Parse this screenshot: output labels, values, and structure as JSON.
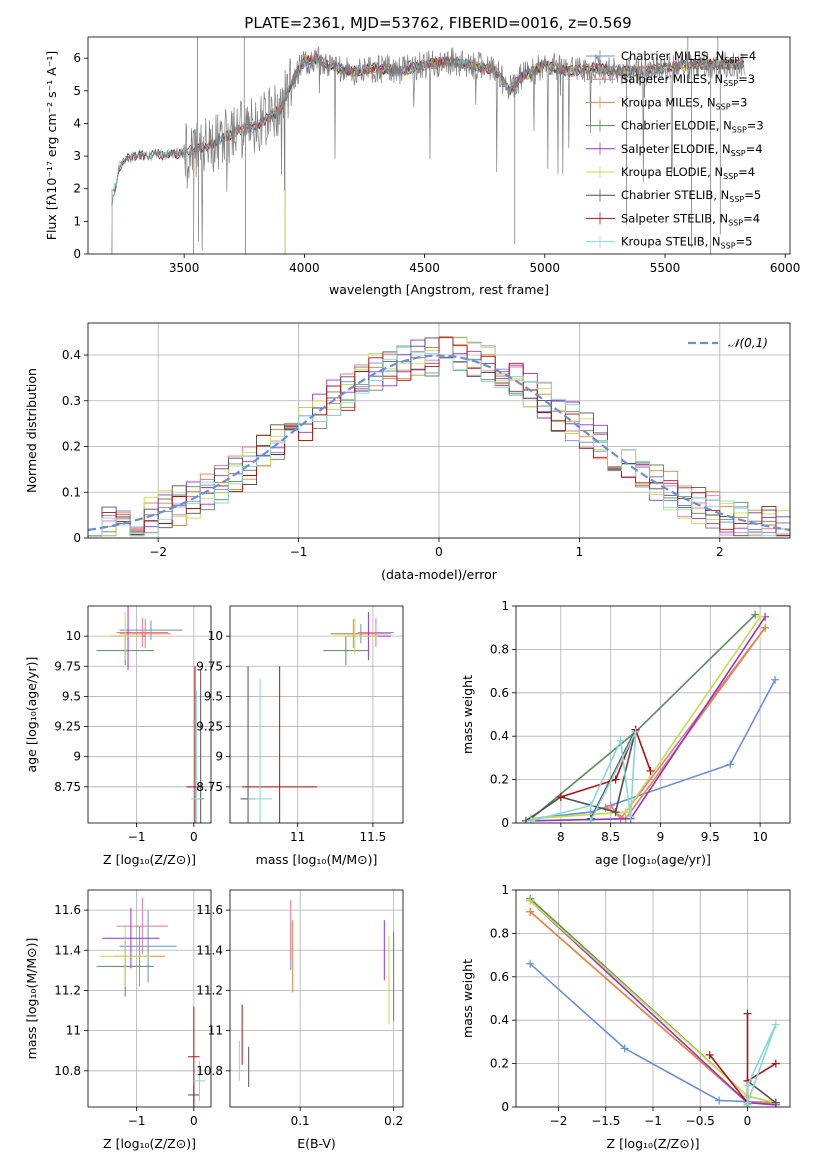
{
  "title": "PLATE=2361, MJD=53762, FIBERID=0016, z=0.569",
  "colors": {
    "chabrier_miles": "#6a8fd8",
    "salpeter_miles": "#e8749f",
    "kroupa_miles": "#e8863a",
    "chabrier_elodie": "#5a8a5a",
    "salpeter_elodie": "#9932cc",
    "kroupa_elodie": "#c8dc50",
    "chabrier_stelib": "#505050",
    "salpeter_stelib": "#b01010",
    "kroupa_stelib": "#88d8d8",
    "data_spectrum": "#7f7f7f",
    "normal_curve": "#6a8fd8"
  },
  "chart_data": [
    {
      "id": "spectrum",
      "type": "line",
      "xlabel": "wavelength [Angstrom, rest frame]",
      "ylabel": "Flux [fλ10⁻¹⁷ erg cm⁻² s⁻¹ A⁻¹]",
      "xlim": [
        3100,
        6020
      ],
      "ylim": [
        0,
        6.65
      ],
      "xticks": [
        3500,
        4000,
        4500,
        5000,
        5500,
        6000
      ],
      "yticks": [
        0,
        1,
        2,
        3,
        4,
        5,
        6
      ],
      "legend_position": "top-right",
      "legend": [
        {
          "label": "Chabrier MILES, N",
          "sub": "SSP",
          "suffix": "=4",
          "color_key": "chabrier_miles"
        },
        {
          "label": "Salpeter MILES, N",
          "sub": "SSP",
          "suffix": "=3",
          "color_key": "salpeter_miles"
        },
        {
          "label": "Kroupa MILES, N",
          "sub": "SSP",
          "suffix": "=3",
          "color_key": "kroupa_miles"
        },
        {
          "label": "Chabrier ELODIE, N",
          "sub": "SSP",
          "suffix": "=3",
          "color_key": "chabrier_elodie"
        },
        {
          "label": "Salpeter ELODIE, N",
          "sub": "SSP",
          "suffix": "=4",
          "color_key": "salpeter_elodie"
        },
        {
          "label": "Kroupa ELODIE, N",
          "sub": "SSP",
          "suffix": "=4",
          "color_key": "kroupa_elodie"
        },
        {
          "label": "Chabrier STELIB, N",
          "sub": "SSP",
          "suffix": "=5",
          "color_key": "chabrier_stelib"
        },
        {
          "label": "Salpeter STELIB, N",
          "sub": "SSP",
          "suffix": "=4",
          "color_key": "salpeter_stelib"
        },
        {
          "label": "Kroupa STELIB, N",
          "sub": "SSP",
          "suffix": "=5",
          "color_key": "kroupa_stelib"
        }
      ],
      "continuum": {
        "x": [
          3200,
          3230,
          3260,
          3300,
          3400,
          3500,
          3600,
          3700,
          3750,
          3800,
          3850,
          3900,
          3950,
          4000,
          4050,
          4100,
          4200,
          4300,
          4400,
          4500,
          4600,
          4700,
          4800,
          4850,
          4900,
          5000,
          5100,
          5200,
          5300,
          5400,
          5500,
          5600,
          5700,
          5800,
          5830
        ],
        "y": [
          1.6,
          2.7,
          2.9,
          3.0,
          3.05,
          3.1,
          3.3,
          3.7,
          3.85,
          3.9,
          4.2,
          4.4,
          5.3,
          5.9,
          6.0,
          5.8,
          5.6,
          5.7,
          5.6,
          5.8,
          5.9,
          5.8,
          5.6,
          5.0,
          5.4,
          5.8,
          5.6,
          5.7,
          5.6,
          5.6,
          5.7,
          5.8,
          5.8,
          5.8,
          5.9
        ]
      },
      "data_spikes_up": [
        {
          "x": 3555,
          "y": 6.65
        },
        {
          "x": 3750,
          "y": 6.65
        },
        {
          "x": 5535,
          "y": 6.1
        },
        {
          "x": 5595,
          "y": 6.65
        },
        {
          "x": 5720,
          "y": 6.65
        }
      ],
      "data_spikes_down": [
        {
          "x": 3560,
          "y": 0.4
        },
        {
          "x": 3755,
          "y": 0.0
        },
        {
          "x": 4875,
          "y": 0.3
        },
        {
          "x": 5340,
          "y": 0.9
        },
        {
          "x": 5610,
          "y": 0.2
        },
        {
          "x": 5690,
          "y": 0.0
        },
        {
          "x": 5730,
          "y": 0.6
        }
      ]
    },
    {
      "id": "residuals",
      "type": "step",
      "xlabel": "(data-model)/error",
      "ylabel": "Normed distribution",
      "xlim": [
        -2.5,
        2.5
      ],
      "ylim": [
        0,
        0.47
      ],
      "xticks": [
        -2,
        -1,
        0,
        1,
        2
      ],
      "yticks": [
        0,
        0.1,
        0.2,
        0.3,
        0.4
      ],
      "legend_position": "top-right",
      "legend": [
        {
          "label": "𝒩(0,1)",
          "color_key": "normal_curve"
        }
      ],
      "bin_width": 0.1,
      "bin_start": -2.5
    },
    {
      "id": "age_vs_Z",
      "type": "errorbar",
      "xlabel": "Z [log₁₀(Z/Z⊙)]",
      "ylabel": "age  [log₁₀(age/yr)]",
      "xlim": [
        -1.85,
        0.3
      ],
      "ylim": [
        8.45,
        10.25
      ],
      "xticks": [
        -1,
        0
      ],
      "yticks": [
        8.75,
        9.0,
        9.25,
        9.5,
        9.75,
        10.0
      ],
      "points": [
        {
          "k": "chabrier_miles",
          "x": -0.75,
          "xe": 0.55,
          "y": 10.05,
          "ye": 0.08
        },
        {
          "k": "salpeter_miles",
          "x": -0.9,
          "xe": 0.45,
          "y": 10.03,
          "ye": 0.12
        },
        {
          "k": "kroupa_miles",
          "x": -0.85,
          "xe": 0.45,
          "y": 10.02,
          "ye": 0.12
        },
        {
          "k": "chabrier_elodie",
          "x": -1.2,
          "xe": 0.5,
          "y": 9.88,
          "ye": 0.12
        },
        {
          "k": "salpeter_elodie",
          "x": -1.15,
          "xe": 0.3,
          "y": 10.0,
          "ye": 0.28
        },
        {
          "k": "kroupa_elodie",
          "x": -1.2,
          "xe": 0.3,
          "y": 10.0,
          "ye": 0.2
        },
        {
          "k": "chabrier_stelib",
          "x": 0.12,
          "xe": 0.05,
          "y": 8.65,
          "ye": 1.08
        },
        {
          "k": "salpeter_stelib",
          "x": 0.02,
          "xe": 0.15,
          "y": 8.75,
          "ye": 1.0
        },
        {
          "k": "kroupa_stelib",
          "x": 0.05,
          "xe": 0.1,
          "y": 8.65,
          "ye": 0.9
        }
      ]
    },
    {
      "id": "age_vs_mass",
      "type": "errorbar",
      "xlabel": "mass [log₁₀(M/M⊙)]",
      "ylabel": "",
      "xlim": [
        10.55,
        11.7
      ],
      "ylim": [
        8.45,
        10.25
      ],
      "xticks": [
        11.0,
        11.5
      ],
      "yticks": [
        8.75,
        9.0,
        9.25,
        9.5,
        9.75,
        10.0
      ],
      "points": [
        {
          "k": "chabrier_miles",
          "x": 11.42,
          "xe": 0.2,
          "y": 10.02,
          "ye": 0.08
        },
        {
          "k": "salpeter_miles",
          "x": 11.52,
          "xe": 0.12,
          "y": 10.03,
          "ye": 0.12
        },
        {
          "k": "kroupa_miles",
          "x": 11.37,
          "xe": 0.15,
          "y": 10.02,
          "ye": 0.12
        },
        {
          "k": "chabrier_elodie",
          "x": 11.32,
          "xe": 0.15,
          "y": 9.88,
          "ye": 0.12
        },
        {
          "k": "salpeter_elodie",
          "x": 11.47,
          "xe": 0.15,
          "y": 10.0,
          "ye": 0.2
        },
        {
          "k": "kroupa_elodie",
          "x": 11.38,
          "xe": 0.15,
          "y": 10.0,
          "ye": 0.15
        },
        {
          "k": "chabrier_stelib",
          "x": 10.67,
          "xe": 0.05,
          "y": 8.65,
          "ye": 1.1
        },
        {
          "k": "salpeter_stelib",
          "x": 10.88,
          "xe": 0.25,
          "y": 8.75,
          "ye": 1.0
        },
        {
          "k": "kroupa_stelib",
          "x": 10.75,
          "xe": 0.08,
          "y": 8.65,
          "ye": 1.0
        }
      ]
    },
    {
      "id": "weight_vs_age",
      "type": "line",
      "xlabel": "age  [log₁₀(age/yr)]",
      "ylabel": "mass weight",
      "xlim": [
        7.55,
        10.3
      ],
      "ylim": [
        0,
        1.0
      ],
      "xticks": [
        8.0,
        8.5,
        9.0,
        9.5,
        10.0
      ],
      "yticks": [
        0,
        0.2,
        0.4,
        0.6,
        0.8,
        1.0
      ],
      "series": [
        {
          "k": "chabrier_miles",
          "x": [
            7.7,
            8.3,
            9.7,
            10.15
          ],
          "y": [
            0.02,
            0.05,
            0.27,
            0.66
          ]
        },
        {
          "k": "salpeter_miles",
          "x": [
            8.5,
            8.6,
            10.05
          ],
          "y": [
            0.08,
            0.02,
            0.9
          ]
        },
        {
          "k": "kroupa_miles",
          "x": [
            8.45,
            8.65,
            10.05
          ],
          "y": [
            0.07,
            0.02,
            0.9
          ]
        },
        {
          "k": "chabrier_elodie",
          "x": [
            7.7,
            8.75,
            9.95
          ],
          "y": [
            0.02,
            0.42,
            0.96
          ]
        },
        {
          "k": "salpeter_elodie",
          "x": [
            7.7,
            8.7,
            10.05
          ],
          "y": [
            0.01,
            0.02,
            0.95
          ]
        },
        {
          "k": "kroupa_elodie",
          "x": [
            7.7,
            8.65,
            10.0
          ],
          "y": [
            0.02,
            0.05,
            0.95
          ]
        },
        {
          "k": "chabrier_stelib",
          "x": [
            7.65,
            8.0,
            8.55,
            8.75,
            8.3
          ],
          "y": [
            0.01,
            0.12,
            0.05,
            0.43,
            0.02
          ]
        },
        {
          "k": "salpeter_stelib",
          "x": [
            8.0,
            8.55,
            8.75,
            8.9
          ],
          "y": [
            0.12,
            0.2,
            0.43,
            0.24
          ]
        },
        {
          "k": "kroupa_stelib",
          "x": [
            7.7,
            8.3,
            8.6,
            8.7,
            8.75,
            8.3
          ],
          "y": [
            0.01,
            0.08,
            0.38,
            0.03,
            0.42,
            0.01
          ]
        }
      ]
    },
    {
      "id": "mass_vs_Z",
      "type": "errorbar",
      "xlabel": "Z [log₁₀(Z/Z⊙)]",
      "ylabel": "mass [log₁₀(M/M⊙)]",
      "xlim": [
        -1.85,
        0.3
      ],
      "ylim": [
        10.62,
        11.7
      ],
      "xticks": [
        -1,
        0
      ],
      "yticks": [
        10.8,
        11.0,
        11.2,
        11.4,
        11.6
      ],
      "points": [
        {
          "k": "chabrier_miles",
          "x": -0.8,
          "xe": 0.5,
          "y": 11.42,
          "ye": 0.18
        },
        {
          "k": "salpeter_miles",
          "x": -0.9,
          "xe": 0.45,
          "y": 11.52,
          "ye": 0.14
        },
        {
          "k": "kroupa_miles",
          "x": -0.95,
          "xe": 0.45,
          "y": 11.37,
          "ye": 0.15
        },
        {
          "k": "chabrier_elodie",
          "x": -1.2,
          "xe": 0.5,
          "y": 11.32,
          "ye": 0.15
        },
        {
          "k": "salpeter_elodie",
          "x": -1.1,
          "xe": 0.5,
          "y": 11.46,
          "ye": 0.15
        },
        {
          "k": "kroupa_elodie",
          "x": -1.2,
          "xe": 0.45,
          "y": 11.37,
          "ye": 0.15
        },
        {
          "k": "chabrier_stelib",
          "x": 0.0,
          "xe": 0.1,
          "y": 10.68,
          "ye": 0.05
        },
        {
          "k": "salpeter_stelib",
          "x": 0.0,
          "xe": 0.1,
          "y": 10.87,
          "ye": 0.25
        },
        {
          "k": "kroupa_stelib",
          "x": 0.1,
          "xe": 0.1,
          "y": 10.75,
          "ye": 0.1
        }
      ]
    },
    {
      "id": "mass_vs_ebv",
      "type": "errorbar",
      "xlabel": "E(B-V)",
      "ylabel": "",
      "xlim": [
        0.025,
        0.21
      ],
      "ylim": [
        10.62,
        11.7
      ],
      "xticks": [
        0.1,
        0.2
      ],
      "yticks": [
        10.8,
        11.0,
        11.2,
        11.4,
        11.6
      ],
      "points": [
        {
          "k": "chabrier_miles",
          "x": 0.09,
          "xe": 0,
          "y": 11.42,
          "ye": 0.12
        },
        {
          "k": "salpeter_miles",
          "x": 0.09,
          "xe": 0,
          "y": 11.5,
          "ye": 0.15
        },
        {
          "k": "kroupa_miles",
          "x": 0.092,
          "xe": 0,
          "y": 11.37,
          "ye": 0.18
        },
        {
          "k": "chabrier_elodie",
          "x": 0.2,
          "xe": 0,
          "y": 11.27,
          "ye": 0.22
        },
        {
          "k": "salpeter_elodie",
          "x": 0.19,
          "xe": 0,
          "y": 11.4,
          "ye": 0.15
        },
        {
          "k": "kroupa_elodie",
          "x": 0.195,
          "xe": 0,
          "y": 11.25,
          "ye": 0.22
        },
        {
          "k": "chabrier_stelib",
          "x": 0.045,
          "xe": 0,
          "y": 10.82,
          "ye": 0.1
        },
        {
          "k": "salpeter_stelib",
          "x": 0.038,
          "xe": 0,
          "y": 10.98,
          "ye": 0.15
        },
        {
          "k": "kroupa_stelib",
          "x": 0.035,
          "xe": 0,
          "y": 10.85,
          "ye": 0.1
        }
      ]
    },
    {
      "id": "weight_vs_Z",
      "type": "line",
      "xlabel": "Z [log₁₀(Z/Z⊙)]",
      "ylabel": "mass weight",
      "xlim": [
        -2.45,
        0.45
      ],
      "ylim": [
        0,
        1.0
      ],
      "xticks": [
        -2.0,
        -1.5,
        -1.0,
        -0.5,
        0.0
      ],
      "yticks": [
        0,
        0.2,
        0.4,
        0.6,
        0.8,
        1.0
      ],
      "series": [
        {
          "k": "chabrier_miles",
          "x": [
            -2.3,
            -1.3,
            -0.3,
            0.3
          ],
          "y": [
            0.66,
            0.27,
            0.03,
            0.02
          ]
        },
        {
          "k": "salpeter_miles",
          "x": [
            -2.3,
            0.0,
            0.3
          ],
          "y": [
            0.9,
            0.02,
            0.02
          ]
        },
        {
          "k": "kroupa_miles",
          "x": [
            -2.3,
            0.0,
            0.3
          ],
          "y": [
            0.9,
            0.02,
            0.02
          ]
        },
        {
          "k": "chabrier_elodie",
          "x": [
            -2.3,
            0.0,
            0.3
          ],
          "y": [
            0.96,
            0.05,
            0.02
          ]
        },
        {
          "k": "salpeter_elodie",
          "x": [
            -2.3,
            0.0,
            0.3
          ],
          "y": [
            0.95,
            0.02,
            0.01
          ]
        },
        {
          "k": "kroupa_elodie",
          "x": [
            -2.3,
            0.0,
            0.3
          ],
          "y": [
            0.95,
            0.05,
            0.02
          ]
        },
        {
          "k": "chabrier_stelib",
          "x": [
            0.0,
            0.0,
            0.3
          ],
          "y": [
            0.01,
            0.12,
            0.02
          ]
        },
        {
          "k": "salpeter_stelib",
          "x": [
            -0.4,
            0.0,
            0.0,
            0.0,
            0.3
          ],
          "y": [
            0.24,
            0.02,
            0.43,
            0.12,
            0.2
          ]
        },
        {
          "k": "kroupa_stelib",
          "x": [
            0.0,
            0.0,
            0.3,
            0.0
          ],
          "y": [
            0.01,
            0.1,
            0.38,
            0.02
          ]
        }
      ]
    }
  ]
}
